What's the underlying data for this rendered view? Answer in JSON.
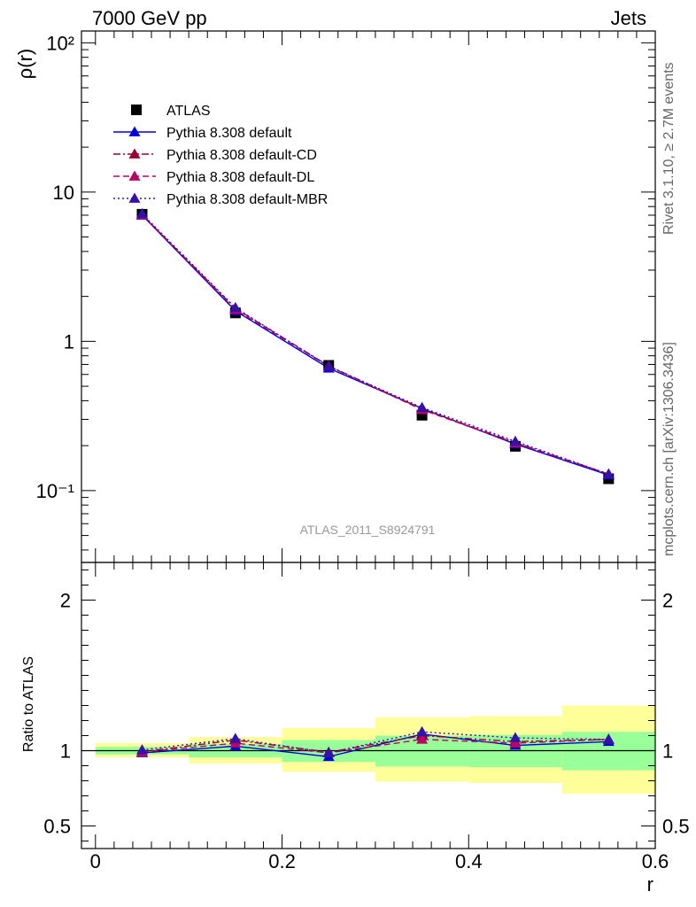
{
  "header": {
    "left": "7000 GeV pp",
    "right": "Jets"
  },
  "side_labels": {
    "rivet": "Rivet 3.1.10, ≥ 2.7M events",
    "source": "mcplots.cern.ch [arXiv:1306.3436]"
  },
  "analysis_label": "ATLAS_2011_S8924791",
  "colors": {
    "atlas": "#000000",
    "default": "#0000dd",
    "cd": "#990033",
    "dl": "#bb0066",
    "mbr": "#3311aa",
    "band_outer": "#ffff99",
    "band_inner": "#99ff99"
  },
  "chart_data": [
    {
      "type": "line",
      "panel": "main",
      "ylabel": "ρ(r)",
      "yscale": "log",
      "xlim": [
        -0.015,
        0.6
      ],
      "ylim": [
        0.033,
        120
      ],
      "ytick_labels": [
        "10⁻¹",
        "1",
        "10",
        "10²"
      ],
      "legend_placement": "top-left",
      "x": [
        0.05,
        0.15,
        0.25,
        0.35,
        0.45,
        0.55
      ],
      "series": [
        {
          "name": "ATLAS",
          "key": "atlas",
          "marker": "square",
          "values": [
            7.1,
            1.55,
            0.69,
            0.32,
            0.198,
            0.12
          ],
          "errors": [
            0.2,
            0.05,
            0.02,
            0.01,
            0.008,
            0.005
          ]
        },
        {
          "name": "Pythia 8.308 default",
          "key": "default",
          "marker": "triangle",
          "dash": "",
          "values": [
            7.0,
            1.6,
            0.66,
            0.355,
            0.205,
            0.127
          ]
        },
        {
          "name": "Pythia 8.308 default-CD",
          "key": "cd",
          "marker": "triangle",
          "dash": "8 3 2 3",
          "values": [
            7.05,
            1.66,
            0.685,
            0.352,
            0.21,
            0.129
          ]
        },
        {
          "name": "Pythia 8.308 default-DL",
          "key": "dl",
          "marker": "triangle",
          "dash": "7 4",
          "values": [
            7.02,
            1.63,
            0.68,
            0.348,
            0.208,
            0.129
          ]
        },
        {
          "name": "Pythia 8.308 default-MBR",
          "key": "mbr",
          "marker": "triangle",
          "dash": "2 3",
          "values": [
            7.15,
            1.68,
            0.68,
            0.36,
            0.214,
            0.129
          ]
        }
      ]
    },
    {
      "type": "line",
      "panel": "ratio",
      "ylabel": "Ratio to ATLAS",
      "xlabel": "r",
      "xlim": [
        -0.015,
        0.6
      ],
      "ylim": [
        0.35,
        2.25
      ],
      "xtick_labels": [
        "0",
        "0.2",
        "0.4",
        "0.6"
      ],
      "ytick_labels": [
        "0.5",
        "1",
        "2"
      ],
      "x": [
        0.05,
        0.15,
        0.25,
        0.35,
        0.45,
        0.55
      ],
      "bands": {
        "edges": [
          0.0,
          0.1,
          0.2,
          0.3,
          0.4,
          0.5,
          0.6
        ],
        "outer_low": [
          0.955,
          0.915,
          0.86,
          0.795,
          0.785,
          0.715
        ],
        "outer_high": [
          1.05,
          1.09,
          1.15,
          1.22,
          1.23,
          1.3
        ],
        "inner_low": [
          0.975,
          0.955,
          0.925,
          0.895,
          0.89,
          0.87
        ],
        "inner_high": [
          1.025,
          1.045,
          1.07,
          1.1,
          1.105,
          1.125
        ]
      },
      "series": [
        {
          "name": "Pythia 8.308 default",
          "key": "default",
          "dash": "",
          "values": [
            0.985,
            1.03,
            0.96,
            1.11,
            1.035,
            1.06
          ]
        },
        {
          "name": "Pythia 8.308 default-CD",
          "key": "cd",
          "dash": "8 3 2 3",
          "values": [
            0.993,
            1.07,
            0.99,
            1.1,
            1.06,
            1.075
          ]
        },
        {
          "name": "Pythia 8.308 default-DL",
          "key": "dl",
          "dash": "7 4",
          "values": [
            0.99,
            1.05,
            0.985,
            1.075,
            1.05,
            1.075
          ]
        },
        {
          "name": "Pythia 8.308 default-MBR",
          "key": "mbr",
          "dash": "2 3",
          "values": [
            1.005,
            1.08,
            0.985,
            1.125,
            1.085,
            1.075
          ]
        }
      ]
    }
  ]
}
